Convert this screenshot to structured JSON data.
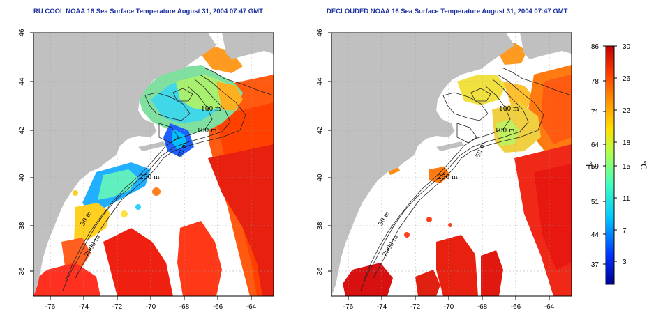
{
  "panels": [
    {
      "id": "left",
      "title": "RU COOL NOAA 16 Sea Surface Temperature August 31, 2004 07:47 GMT",
      "x_ticks": [
        "-76",
        "-74",
        "-72",
        "-70",
        "-68",
        "-66",
        "-64"
      ],
      "y_ticks": [
        "36",
        "38",
        "40",
        "42",
        "44",
        "46"
      ],
      "contour_labels": [
        "100 m",
        "100 m",
        "50 m",
        "250 m",
        "50 m",
        "2000 m"
      ]
    },
    {
      "id": "right",
      "title": "DECLOUDED NOAA 16 Sea Surface Temperature August 31, 2004 07:47 GMT",
      "x_ticks": [
        "-76",
        "-74",
        "-72",
        "-70",
        "-68",
        "-66",
        "-64"
      ],
      "y_ticks": [
        "36",
        "38",
        "40",
        "42",
        "44",
        "46"
      ],
      "contour_labels": [
        "100 m",
        "100 m",
        "50 m",
        "250 m",
        "50 m",
        "2000 m"
      ]
    }
  ],
  "colorbar": {
    "fahrenheit_ticks": [
      "86",
      "78",
      "71",
      "64",
      "59",
      "51",
      "44",
      "37"
    ],
    "celsius_ticks": [
      "30",
      "26",
      "22",
      "18",
      "15",
      "11",
      "7",
      "3"
    ],
    "fahrenheit_unit": "°F",
    "celsius_unit": "°C",
    "range_c": [
      0,
      30
    ],
    "colors": [
      "#00008f",
      "#0030ff",
      "#00c8ff",
      "#40ffbf",
      "#b0ff50",
      "#ffe000",
      "#ff9a00",
      "#ff4000",
      "#c00000"
    ]
  },
  "colors": {
    "land": "#c0c0c0",
    "cloud_mask": "#ffffff",
    "title": "#1c2f9e",
    "grid": "#999999"
  }
}
